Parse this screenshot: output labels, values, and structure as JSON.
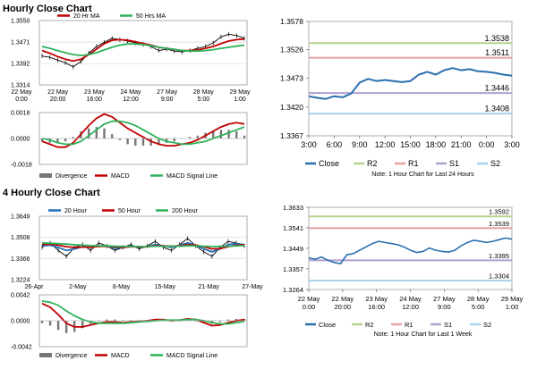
{
  "sections": [
    {
      "title": "Hourly Close Chart"
    },
    {
      "title": "4 Hourly Close Chart"
    }
  ],
  "colors": {
    "red": "#c00000",
    "green": "#2eb25a",
    "blue": "#1f6fb5",
    "black": "#000000",
    "r2": "#b5d38f",
    "r1": "#e8a0a0",
    "s1": "#b0a0d0",
    "s2": "#a6d2ea",
    "close": "#2a6fb0",
    "div": "#777777",
    "grid": "#d8d8d8"
  },
  "chart_data": [
    {
      "id": "h_price",
      "type": "line",
      "section": "hourly",
      "panel": "price",
      "legend": [
        {
          "name": "20 Hr MA",
          "color": "red"
        },
        {
          "name": "50 Hrs MA",
          "color": "green"
        }
      ],
      "ylim": [
        1.3314,
        1.355
      ],
      "y_ticks": [
        "1.3550",
        "1.3471",
        "1.3392",
        "1.3314"
      ],
      "y_tick_values": [
        1.355,
        1.3471,
        1.3392,
        1.3314
      ],
      "x_ticks": [
        [
          "22 May",
          "0:00"
        ],
        [
          "22 May",
          "20:00"
        ],
        [
          "23 May",
          "16:00"
        ],
        [
          "24 May",
          "12:00"
        ],
        [
          "27 May",
          "9:00"
        ],
        [
          "28 May",
          "5:00"
        ],
        [
          "29 May",
          "1:00"
        ]
      ],
      "series": [
        {
          "name": "Close",
          "color": "black",
          "values": [
            1.342,
            1.3415,
            1.3405,
            1.3395,
            1.338,
            1.34,
            1.343,
            1.3455,
            1.347,
            1.3485,
            1.348,
            1.3475,
            1.3468,
            1.3462,
            1.3455,
            1.344,
            1.3445,
            1.3438,
            1.3435,
            1.344,
            1.3448,
            1.3455,
            1.3468,
            1.349,
            1.35,
            1.3495,
            1.3485
          ]
        },
        {
          "name": "20 Hr MA",
          "color": "red",
          "values": [
            1.344,
            1.343,
            1.3418,
            1.3408,
            1.3402,
            1.3408,
            1.3425,
            1.3445,
            1.3465,
            1.3478,
            1.348,
            1.3478,
            1.3472,
            1.3466,
            1.346,
            1.3452,
            1.3448,
            1.3444,
            1.344,
            1.344,
            1.3442,
            1.3448,
            1.3455,
            1.3465,
            1.3475,
            1.348,
            1.3482
          ]
        },
        {
          "name": "50 Hrs MA",
          "color": "green",
          "values": [
            1.3455,
            1.3448,
            1.344,
            1.3432,
            1.3425,
            1.3422,
            1.3425,
            1.3432,
            1.3442,
            1.3452,
            1.346,
            1.3464,
            1.3464,
            1.3462,
            1.3458,
            1.3452,
            1.3448,
            1.3444,
            1.344,
            1.3438,
            1.3438,
            1.344,
            1.3443,
            1.3448,
            1.3452,
            1.3456,
            1.346
          ]
        }
      ]
    },
    {
      "id": "h_macd",
      "type": "line",
      "section": "hourly",
      "panel": "macd",
      "legend": [
        {
          "name": "Divergence",
          "color": "div"
        },
        {
          "name": "MACD",
          "color": "red"
        },
        {
          "name": "MACD Signal Line",
          "color": "green"
        }
      ],
      "ylim": [
        -0.0018,
        0.0018
      ],
      "y_ticks": [
        "0.0018",
        "0.0000",
        "-0.0018"
      ],
      "y_tick_values": [
        0.0018,
        0.0,
        -0.0018
      ],
      "series": [
        {
          "name": "MACD",
          "color": "red",
          "values": [
            -0.0002,
            -0.0004,
            -0.0006,
            -0.0006,
            -0.0003,
            0.0003,
            0.0009,
            0.0014,
            0.0017,
            0.0015,
            0.0011,
            0.0007,
            0.0004,
            0.0001,
            -0.0002,
            -0.0004,
            -0.0005,
            -0.0005,
            -0.0004,
            -0.0003,
            -0.0001,
            0.0002,
            0.0005,
            0.0008,
            0.001,
            0.0011,
            0.001
          ]
        },
        {
          "name": "MACD Signal Line",
          "color": "green",
          "values": [
            0.0,
            -0.0001,
            -0.0003,
            -0.0004,
            -0.0004,
            -0.0002,
            0.0002,
            0.0006,
            0.001,
            0.0012,
            0.0012,
            0.0011,
            0.0009,
            0.0006,
            0.0003,
            0.0,
            -0.0002,
            -0.0003,
            -0.0004,
            -0.0004,
            -0.0003,
            -0.0002,
            0.0,
            0.0002,
            0.0004,
            0.0006,
            0.0008
          ]
        },
        {
          "name": "Divergence",
          "color": "div",
          "values": [
            -0.0002,
            -0.0003,
            -0.0003,
            -0.0002,
            0.0001,
            0.0005,
            0.0007,
            0.0008,
            0.0007,
            0.0003,
            -0.0001,
            -0.0004,
            -0.0005,
            -0.0005,
            -0.0005,
            -0.0004,
            -0.0003,
            -0.0002,
            0.0,
            0.0001,
            0.0002,
            0.0004,
            0.0005,
            0.0006,
            0.0006,
            0.0005,
            0.0002
          ]
        }
      ]
    },
    {
      "id": "h_pivot",
      "type": "line",
      "section": "hourly",
      "panel": "pivot",
      "ylim": [
        1.3367,
        1.3578
      ],
      "y_ticks": [
        "1.3578",
        "1.3526",
        "1.3473",
        "1.3420",
        "1.3367"
      ],
      "y_tick_values": [
        1.3578,
        1.3526,
        1.3473,
        1.342,
        1.3367
      ],
      "x_ticks": [
        "3:00",
        "6:00",
        "9:00",
        "12:00",
        "15:00",
        "18:00",
        "21:00",
        "0:00",
        "3:00"
      ],
      "levels": [
        {
          "name": "R2",
          "value": 1.3538,
          "label": "1.3538",
          "color": "r2"
        },
        {
          "name": "R1",
          "value": 1.3511,
          "label": "1.3511",
          "color": "r1"
        },
        {
          "name": "S1",
          "value": 1.3446,
          "label": "1.3446",
          "color": "s1"
        },
        {
          "name": "S2",
          "value": 1.3408,
          "label": "1.3408",
          "color": "s2"
        }
      ],
      "series": [
        {
          "name": "Close",
          "color": "close",
          "values": [
            1.344,
            1.3437,
            1.3435,
            1.344,
            1.3438,
            1.3445,
            1.3465,
            1.3472,
            1.3468,
            1.347,
            1.3468,
            1.3466,
            1.3468,
            1.348,
            1.3485,
            1.348,
            1.3488,
            1.3492,
            1.3488,
            1.349,
            1.3486,
            1.3485,
            1.3483,
            1.348,
            1.3478
          ]
        }
      ],
      "legend": [
        {
          "name": "Close",
          "color": "close"
        },
        {
          "name": "R2",
          "color": "r2"
        },
        {
          "name": "R1",
          "color": "r1"
        },
        {
          "name": "S1",
          "color": "s1"
        },
        {
          "name": "S2",
          "color": "s2"
        }
      ],
      "note": "Note: 1 Hour Chart for Last 24 Hours"
    },
    {
      "id": "f_price",
      "type": "line",
      "section": "4hourly",
      "panel": "price",
      "legend": [
        {
          "name": "20 Hour",
          "color": "blue"
        },
        {
          "name": "50 Hour",
          "color": "red"
        },
        {
          "name": "200 Hour",
          "color": "green"
        }
      ],
      "ylim": [
        1.3224,
        1.3649
      ],
      "y_ticks": [
        "1.3649",
        "1.3508",
        "1.3366",
        "1.3224"
      ],
      "y_tick_values": [
        1.3649,
        1.3508,
        1.3366,
        1.3224
      ],
      "x_ticks": [
        "26-Apr",
        "2-May",
        "8-May",
        "15-May",
        "21-May",
        "27-May"
      ],
      "series": [
        {
          "name": "Close",
          "color": "black",
          "values": [
            1.344,
            1.347,
            1.342,
            1.338,
            1.344,
            1.346,
            1.342,
            1.347,
            1.345,
            1.342,
            1.344,
            1.346,
            1.343,
            1.345,
            1.348,
            1.344,
            1.342,
            1.346,
            1.35,
            1.345,
            1.341,
            1.338,
            1.344,
            1.348,
            1.347,
            1.345
          ]
        },
        {
          "name": "20 Hour",
          "color": "blue",
          "values": [
            1.345,
            1.3455,
            1.344,
            1.342,
            1.343,
            1.3445,
            1.344,
            1.345,
            1.3448,
            1.3435,
            1.3438,
            1.345,
            1.3442,
            1.3445,
            1.346,
            1.345,
            1.344,
            1.3455,
            1.347,
            1.3455,
            1.343,
            1.341,
            1.343,
            1.346,
            1.3465,
            1.3458
          ]
        },
        {
          "name": "50 Hour",
          "color": "red",
          "values": [
            1.346,
            1.3462,
            1.3455,
            1.3445,
            1.344,
            1.3442,
            1.3442,
            1.3446,
            1.3448,
            1.3444,
            1.344,
            1.3444,
            1.3444,
            1.3445,
            1.345,
            1.345,
            1.3448,
            1.345,
            1.3458,
            1.3455,
            1.3445,
            1.343,
            1.3432,
            1.3445,
            1.3455,
            1.3458
          ]
        },
        {
          "name": "200 Hour",
          "color": "green",
          "values": [
            1.347,
            1.3468,
            1.3465,
            1.3462,
            1.3458,
            1.3455,
            1.3452,
            1.345,
            1.345,
            1.3448,
            1.3446,
            1.3446,
            1.3446,
            1.3446,
            1.3448,
            1.3448,
            1.3448,
            1.3448,
            1.345,
            1.345,
            1.3448,
            1.3446,
            1.3446,
            1.3448,
            1.345,
            1.3452
          ]
        }
      ]
    },
    {
      "id": "f_macd",
      "type": "line",
      "section": "4hourly",
      "panel": "macd",
      "legend": [
        {
          "name": "Divergence",
          "color": "div"
        },
        {
          "name": "MACD",
          "color": "red"
        },
        {
          "name": "MACD Signal Line",
          "color": "green"
        }
      ],
      "ylim": [
        -0.0042,
        0.0042
      ],
      "y_ticks": [
        "0.0042",
        "0.0000",
        "-0.0042"
      ],
      "y_tick_values": [
        0.0042,
        0.0,
        -0.0042
      ],
      "series": [
        {
          "name": "MACD",
          "color": "red",
          "values": [
            0.0028,
            0.0022,
            0.001,
            -0.0004,
            -0.001,
            -0.001,
            -0.0007,
            -0.0004,
            -0.0002,
            -0.0002,
            -0.0003,
            -0.0002,
            -0.0001,
            0.0,
            0.0002,
            0.0002,
            0.0,
            0.0001,
            0.0003,
            0.0002,
            -0.0003,
            -0.0008,
            -0.0007,
            -0.0003,
            0.0,
            0.0002
          ]
        },
        {
          "name": "MACD Signal Line",
          "color": "green",
          "values": [
            0.0032,
            0.003,
            0.0025,
            0.0016,
            0.0008,
            0.0002,
            -0.0002,
            -0.0004,
            -0.0004,
            -0.0004,
            -0.0004,
            -0.0003,
            -0.0002,
            -0.0001,
            0.0,
            0.0001,
            0.0001,
            0.0001,
            0.0002,
            0.0002,
            0.0,
            -0.0003,
            -0.0005,
            -0.0005,
            -0.0003,
            -0.0001
          ]
        },
        {
          "name": "Divergence",
          "color": "div",
          "values": [
            -0.0004,
            -0.0008,
            -0.0015,
            -0.002,
            -0.0018,
            -0.0012,
            -0.0005,
            0.0,
            0.0002,
            0.0002,
            0.0001,
            0.0001,
            0.0001,
            0.0001,
            0.0002,
            0.0001,
            -0.0001,
            0.0,
            0.0001,
            0.0,
            -0.0003,
            -0.0005,
            -0.0002,
            0.0002,
            0.0003,
            0.0003
          ]
        }
      ]
    },
    {
      "id": "f_pivot",
      "type": "line",
      "section": "4hourly",
      "panel": "pivot",
      "ylim": [
        1.3264,
        1.3633
      ],
      "y_ticks": [
        "1.3633",
        "1.3541",
        "1.3449",
        "1.3357",
        "1.3264"
      ],
      "y_tick_values": [
        1.3633,
        1.3541,
        1.3449,
        1.3357,
        1.3264
      ],
      "x_ticks": [
        [
          "22 May",
          "0:00"
        ],
        [
          "22 May",
          "20:00"
        ],
        [
          "23 May",
          "16:00"
        ],
        [
          "24 May",
          "12:00"
        ],
        [
          "27 May",
          "9:00"
        ],
        [
          "28 May",
          "5:00"
        ],
        [
          "29 May",
          "1:00"
        ]
      ],
      "levels": [
        {
          "name": "R2",
          "value": 1.3592,
          "label": "1.3592",
          "color": "r2"
        },
        {
          "name": "R1",
          "value": 1.3539,
          "label": "1.3539",
          "color": "r1"
        },
        {
          "name": "S1",
          "value": 1.3395,
          "label": "1.3395",
          "color": "s1"
        },
        {
          "name": "S2",
          "value": 1.3304,
          "label": "1.3304",
          "color": "s2"
        }
      ],
      "series": [
        {
          "name": "Close",
          "color": "close",
          "values": [
            1.3405,
            1.34,
            1.341,
            1.3395,
            1.3385,
            1.338,
            1.342,
            1.3425,
            1.344,
            1.3455,
            1.347,
            1.348,
            1.3475,
            1.347,
            1.3465,
            1.3455,
            1.344,
            1.343,
            1.3435,
            1.345,
            1.344,
            1.3435,
            1.3432,
            1.344,
            1.346,
            1.3475,
            1.3485,
            1.348,
            1.3475,
            1.348,
            1.3488,
            1.3495,
            1.349
          ]
        }
      ],
      "legend": [
        {
          "name": "Close",
          "color": "close"
        },
        {
          "name": "R2",
          "color": "r2"
        },
        {
          "name": "R1",
          "color": "r1"
        },
        {
          "name": "S1",
          "color": "s1"
        },
        {
          "name": "S2",
          "color": "s2"
        }
      ],
      "note": "Note: 1 Hour Chart for Last 1 Week"
    }
  ]
}
